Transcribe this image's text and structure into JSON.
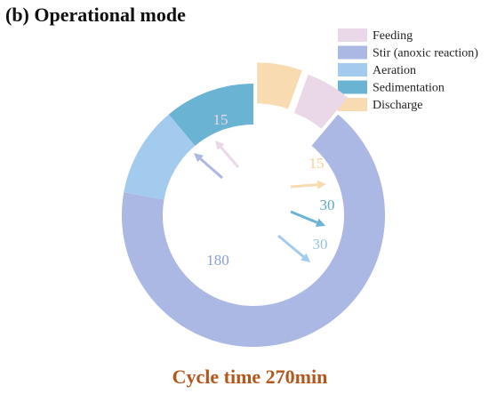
{
  "chart_data": {
    "type": "pie",
    "title": "(b) Operational mode",
    "footer": "Cycle time 270min",
    "legend_position": "top-right",
    "categories": [
      "Feeding",
      "Stir (anoxic reaction)",
      "Aeration",
      "Sedimentation",
      "Discharge"
    ],
    "values": [
      15,
      180,
      30,
      30,
      15
    ],
    "value_labels": [
      "15",
      "180",
      "30",
      "30",
      "15"
    ],
    "colors": [
      "#ead8e8",
      "#abb8e4",
      "#a2cbee",
      "#6ab3d3",
      "#f8dbb0"
    ],
    "label_colors": [
      "#ead8e8",
      "#8c9fd4",
      "#97c3e6",
      "#5ca7c8",
      "#f6cf95"
    ],
    "footer_color": "#b5561b"
  }
}
